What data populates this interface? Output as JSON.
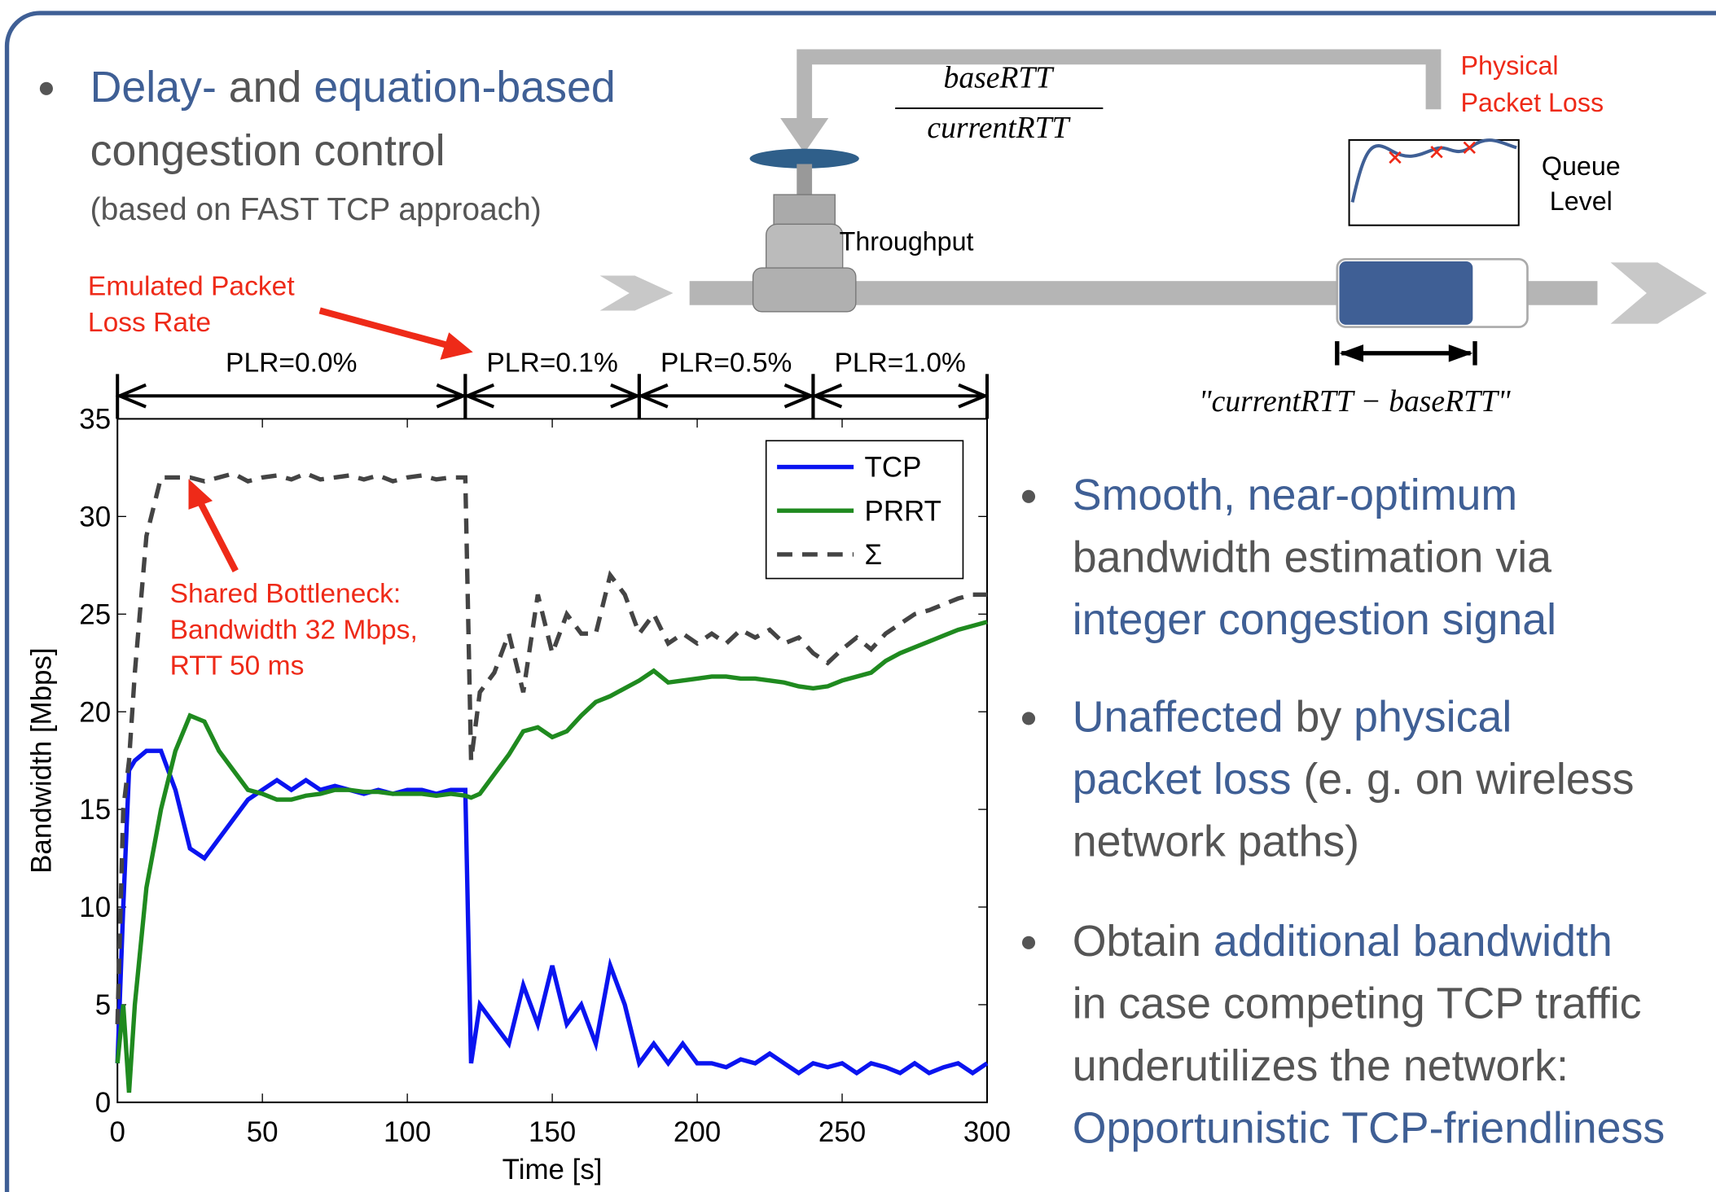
{
  "slide": {
    "accent_color": "#3F5F95",
    "text_color": "#555555",
    "bullets_left": [
      {
        "lines": [
          [
            {
              "text": "Delay-",
              "accent": true
            },
            {
              "text": " and ",
              "accent": false
            },
            {
              "text": "equation-based",
              "accent": true
            }
          ],
          [
            {
              "text": "congestion control",
              "accent": false
            }
          ]
        ],
        "note": "(based on FAST TCP approach)"
      }
    ],
    "bullets_right": [
      {
        "lines": [
          [
            {
              "text": "Smooth, near-optimum",
              "accent": true
            }
          ],
          [
            {
              "text": "bandwidth estimation via",
              "accent": false
            }
          ],
          [
            {
              "text": "integer congestion signal",
              "accent": true
            }
          ]
        ]
      },
      {
        "lines": [
          [
            {
              "text": "Unaffected",
              "accent": true
            },
            {
              "text": " by ",
              "accent": false
            },
            {
              "text": "physical",
              "accent": true
            }
          ],
          [
            {
              "text": "packet loss",
              "accent": true
            },
            {
              "text": " (e. g. on wireless",
              "accent": false
            }
          ],
          [
            {
              "text": "network paths)",
              "accent": false
            }
          ]
        ]
      },
      {
        "lines": [
          [
            {
              "text": "Obtain ",
              "accent": false
            },
            {
              "text": "additional bandwidth",
              "accent": true
            }
          ],
          [
            {
              "text": "in case competing TCP traffic",
              "accent": false
            }
          ],
          [
            {
              "text": "underutilizes the network:",
              "accent": false
            }
          ],
          [
            {
              "text": "Opportunistic TCP-friendliness",
              "accent": true
            }
          ]
        ]
      }
    ],
    "diagram": {
      "fraction_top": "baseRTT",
      "fraction_bottom": "currentRTT",
      "loss_label": [
        "Physical",
        "Packet Loss"
      ],
      "queue_label": [
        "Queue",
        "Level"
      ],
      "throughput_label": "Throughput",
      "delay_label": "\"currentRTT − baseRTT\""
    }
  },
  "chart_data": {
    "type": "line",
    "x_label": "Time [s]",
    "y_label": "Bandwidth [Mbps]",
    "xlim": [
      0,
      300
    ],
    "ylim": [
      0,
      35
    ],
    "xticks": [
      0,
      50,
      100,
      150,
      200,
      250,
      300
    ],
    "yticks": [
      0,
      5,
      10,
      15,
      20,
      25,
      30,
      35
    ],
    "grid": false,
    "legend": "top-right",
    "x": [
      0,
      2,
      4,
      6,
      10,
      15,
      20,
      25,
      30,
      35,
      40,
      45,
      50,
      55,
      60,
      65,
      70,
      75,
      80,
      85,
      90,
      95,
      100,
      105,
      110,
      115,
      120,
      122,
      125,
      130,
      135,
      140,
      145,
      150,
      155,
      160,
      165,
      170,
      175,
      180,
      185,
      190,
      195,
      200,
      205,
      210,
      215,
      220,
      225,
      230,
      235,
      240,
      245,
      250,
      255,
      260,
      265,
      270,
      275,
      280,
      285,
      290,
      295,
      300
    ],
    "series": [
      {
        "name": "TCP",
        "color": "#0a14f0",
        "dash": false,
        "values": [
          2,
          10,
          17,
          17.5,
          18,
          18,
          16,
          13,
          12.5,
          13.5,
          14.5,
          15.5,
          16,
          16.5,
          16,
          16.5,
          16,
          16.2,
          16,
          15.8,
          16,
          15.8,
          16,
          16,
          15.8,
          16,
          16,
          2,
          5,
          4,
          3,
          6,
          4,
          7,
          4,
          5,
          3,
          7,
          5,
          2,
          3,
          2,
          3,
          2,
          2,
          1.8,
          2.2,
          2,
          2.5,
          2,
          1.5,
          2,
          1.8,
          2,
          1.5,
          2,
          1.8,
          1.5,
          2,
          1.5,
          1.8,
          2,
          1.5,
          2
        ]
      },
      {
        "name": "PRRT",
        "color": "#1f8a1f",
        "dash": false,
        "values": [
          2,
          5,
          0.5,
          5,
          11,
          15,
          18,
          19.8,
          19.5,
          18,
          17,
          16,
          15.8,
          15.5,
          15.5,
          15.7,
          15.8,
          16,
          16,
          15.9,
          15.9,
          15.8,
          15.8,
          15.8,
          15.7,
          15.8,
          15.7,
          15.6,
          15.8,
          16.8,
          17.8,
          19,
          19.2,
          18.7,
          19,
          19.8,
          20.5,
          20.8,
          21.2,
          21.6,
          22.1,
          21.5,
          21.6,
          21.7,
          21.8,
          21.8,
          21.7,
          21.7,
          21.6,
          21.5,
          21.3,
          21.2,
          21.3,
          21.6,
          21.8,
          22,
          22.6,
          23,
          23.3,
          23.6,
          23.9,
          24.2,
          24.4,
          24.6
        ]
      },
      {
        "name": "Σ",
        "color": "#444444",
        "dash": true,
        "values": [
          4,
          15,
          17.5,
          22,
          29,
          32,
          32,
          32,
          31.8,
          32,
          32.2,
          31.8,
          32,
          32.1,
          31.9,
          32.2,
          31.9,
          32,
          32.1,
          31.9,
          32.1,
          31.8,
          32,
          32.1,
          31.9,
          32,
          32,
          17.5,
          21,
          22,
          24,
          21,
          26,
          23,
          25,
          24,
          24,
          27,
          26,
          24,
          25,
          23.5,
          24,
          23.5,
          24,
          23.5,
          24.2,
          23.8,
          24.2,
          23.5,
          23.8,
          23,
          22.5,
          23.2,
          23.8,
          23.2,
          24,
          24.5,
          25,
          25.2,
          25.5,
          25.8,
          26,
          26
        ]
      }
    ],
    "plr_regions": [
      {
        "label": "PLR=0.0%",
        "start": 0,
        "end": 120
      },
      {
        "label": "PLR=0.1%",
        "start": 120,
        "end": 180
      },
      {
        "label": "PLR=0.5%",
        "start": 180,
        "end": 240
      },
      {
        "label": "PLR=1.0%",
        "start": 240,
        "end": 300
      }
    ],
    "annotations": [
      {
        "lines": [
          "Emulated Packet",
          "Loss Rate"
        ],
        "color": "#ee2a18"
      },
      {
        "lines": [
          "Shared Bottleneck:",
          "Bandwidth 32 Mbps,",
          "RTT 50 ms"
        ],
        "color": "#ee2a18"
      }
    ]
  }
}
